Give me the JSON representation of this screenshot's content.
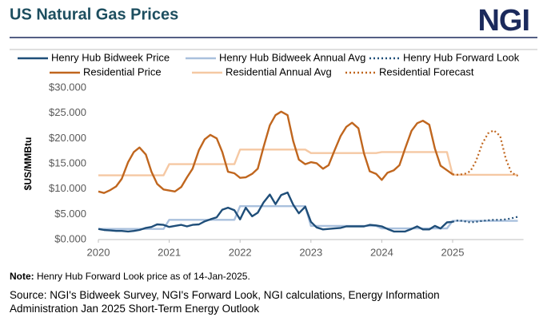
{
  "chart_data": {
    "type": "line",
    "title": "US Natural Gas Prices",
    "logo": "NGI",
    "y_label": "$US/MMBtu",
    "x": [
      2020,
      2020.08,
      2020.17,
      2020.25,
      2020.33,
      2020.42,
      2020.5,
      2020.58,
      2020.67,
      2020.75,
      2020.83,
      2020.92,
      2021,
      2021.08,
      2021.17,
      2021.25,
      2021.33,
      2021.42,
      2021.5,
      2021.58,
      2021.67,
      2021.75,
      2021.83,
      2021.92,
      2022,
      2022.08,
      2022.17,
      2022.25,
      2022.33,
      2022.42,
      2022.5,
      2022.58,
      2022.67,
      2022.75,
      2022.83,
      2022.92,
      2023,
      2023.08,
      2023.17,
      2023.25,
      2023.33,
      2023.42,
      2023.5,
      2023.58,
      2023.67,
      2023.75,
      2023.83,
      2023.92,
      2024,
      2024.08,
      2024.17,
      2024.25,
      2024.33,
      2024.42,
      2024.5,
      2024.58,
      2024.67,
      2024.75,
      2024.83,
      2024.92,
      2025,
      2025.08,
      2025.17,
      2025.25,
      2025.33,
      2025.42,
      2025.5,
      2025.58,
      2025.67,
      2025.75,
      2025.83,
      2025.92
    ],
    "series": [
      {
        "name": "Henry Hub Bidweek Price",
        "color": "#1f4e79",
        "dash": false,
        "values": [
          2.1,
          1.9,
          1.8,
          1.7,
          1.7,
          1.6,
          1.7,
          1.9,
          2.3,
          2.5,
          3.0,
          2.9,
          2.5,
          2.7,
          2.9,
          2.6,
          2.9,
          3.0,
          3.6,
          4.0,
          4.4,
          5.9,
          6.3,
          5.8,
          4.0,
          6.3,
          4.6,
          5.3,
          7.3,
          8.9,
          7.0,
          8.8,
          9.3,
          6.9,
          5.2,
          6.5,
          3.5,
          2.4,
          2.0,
          2.1,
          2.2,
          2.3,
          2.6,
          2.6,
          2.6,
          2.6,
          2.9,
          2.8,
          2.6,
          2.1,
          1.6,
          1.6,
          1.6,
          2.1,
          2.6,
          2.0,
          2.0,
          2.7,
          2.2,
          3.4,
          3.5,
          null,
          null,
          null,
          null,
          null,
          null,
          null,
          null,
          null,
          null,
          null
        ]
      },
      {
        "name": "Henry Hub Bidweek Annual Avg",
        "color": "#a9c0dd",
        "dash": false,
        "values": [
          2.1,
          2.1,
          2.1,
          2.1,
          2.1,
          2.1,
          2.1,
          2.1,
          2.1,
          2.1,
          2.1,
          2.1,
          3.9,
          3.9,
          3.9,
          3.9,
          3.9,
          3.9,
          3.9,
          3.9,
          3.9,
          3.9,
          3.9,
          3.9,
          6.6,
          6.6,
          6.6,
          6.6,
          6.6,
          6.6,
          6.6,
          6.6,
          6.6,
          6.6,
          6.6,
          6.6,
          2.7,
          2.7,
          2.7,
          2.7,
          2.7,
          2.7,
          2.7,
          2.7,
          2.7,
          2.7,
          2.7,
          2.7,
          2.2,
          2.2,
          2.2,
          2.2,
          2.2,
          2.2,
          2.2,
          2.2,
          2.2,
          2.2,
          2.2,
          2.2,
          3.7,
          3.7,
          3.7,
          3.7,
          3.7,
          3.7,
          3.7,
          3.7,
          3.7,
          3.7,
          3.7,
          3.7
        ]
      },
      {
        "name": "Henry Hub Forward Look",
        "color": "#1f4e79",
        "dash": true,
        "values": [
          null,
          null,
          null,
          null,
          null,
          null,
          null,
          null,
          null,
          null,
          null,
          null,
          null,
          null,
          null,
          null,
          null,
          null,
          null,
          null,
          null,
          null,
          null,
          null,
          null,
          null,
          null,
          null,
          null,
          null,
          null,
          null,
          null,
          null,
          null,
          null,
          null,
          null,
          null,
          null,
          null,
          null,
          null,
          null,
          null,
          null,
          null,
          null,
          null,
          null,
          null,
          null,
          null,
          null,
          null,
          null,
          null,
          null,
          null,
          null,
          3.5,
          3.8,
          3.6,
          3.4,
          3.5,
          3.7,
          3.8,
          3.9,
          3.9,
          4.0,
          4.2,
          4.5
        ]
      },
      {
        "name": "Residential Price",
        "color": "#c0661e",
        "dash": false,
        "values": [
          9.5,
          9.2,
          9.8,
          10.5,
          12.0,
          15.3,
          17.3,
          18.2,
          16.8,
          13.4,
          11.0,
          9.9,
          9.7,
          9.5,
          10.4,
          12.3,
          14.0,
          17.7,
          19.8,
          20.7,
          20.0,
          17.3,
          13.4,
          13.1,
          12.2,
          12.3,
          13.0,
          14.0,
          18.2,
          22.6,
          24.6,
          25.3,
          24.6,
          19.5,
          15.8,
          14.9,
          15.3,
          15.1,
          14.0,
          14.7,
          17.5,
          20.5,
          22.3,
          23.1,
          22.0,
          17.0,
          13.5,
          13.0,
          11.8,
          13.2,
          13.7,
          14.7,
          18.0,
          21.5,
          23.0,
          23.5,
          22.7,
          18.0,
          14.6,
          13.7,
          12.9,
          null,
          null,
          null,
          null,
          null,
          null,
          null,
          null,
          null,
          null,
          null
        ]
      },
      {
        "name": "Residential Annual Avg",
        "color": "#f5c8a3",
        "dash": false,
        "values": [
          12.7,
          12.7,
          12.7,
          12.7,
          12.7,
          12.7,
          12.7,
          12.7,
          12.7,
          12.7,
          12.7,
          12.7,
          14.9,
          14.9,
          14.9,
          14.9,
          14.9,
          14.9,
          14.9,
          14.9,
          14.9,
          14.9,
          14.9,
          14.9,
          17.8,
          17.8,
          17.8,
          17.8,
          17.8,
          17.8,
          17.8,
          17.8,
          17.8,
          17.8,
          17.8,
          17.8,
          17.1,
          17.1,
          17.1,
          17.1,
          17.1,
          17.1,
          17.1,
          17.1,
          17.1,
          17.1,
          17.1,
          17.1,
          17.3,
          17.3,
          17.3,
          17.3,
          17.3,
          17.3,
          17.3,
          17.3,
          17.3,
          17.3,
          17.3,
          17.3,
          12.8,
          12.8,
          12.8,
          12.8,
          12.8,
          12.8,
          12.8,
          12.8,
          12.8,
          12.8,
          12.8,
          12.8
        ]
      },
      {
        "name": "Residential Forecast",
        "color": "#c0661e",
        "dash": true,
        "values": [
          null,
          null,
          null,
          null,
          null,
          null,
          null,
          null,
          null,
          null,
          null,
          null,
          null,
          null,
          null,
          null,
          null,
          null,
          null,
          null,
          null,
          null,
          null,
          null,
          null,
          null,
          null,
          null,
          null,
          null,
          null,
          null,
          null,
          null,
          null,
          null,
          null,
          null,
          null,
          null,
          null,
          null,
          null,
          null,
          null,
          null,
          null,
          null,
          null,
          null,
          null,
          null,
          null,
          null,
          null,
          null,
          null,
          null,
          null,
          null,
          12.9,
          12.8,
          13.0,
          13.5,
          15.5,
          19.0,
          21.0,
          21.6,
          20.5,
          16.0,
          13.2,
          12.6
        ]
      }
    ],
    "xlim": [
      2020,
      2026
    ],
    "xticks": [
      2020,
      2021,
      2022,
      2023,
      2024,
      2025
    ],
    "ylim": [
      0,
      30
    ],
    "yticks": [
      {
        "value": 0,
        "label": "$0.000"
      },
      {
        "value": 5,
        "label": "$5.000"
      },
      {
        "value": 10,
        "label": "$10.000"
      },
      {
        "value": 15,
        "label": "$15.000"
      },
      {
        "value": 20,
        "label": "$20.000"
      },
      {
        "value": 25,
        "label": "$25.000"
      },
      {
        "value": 30,
        "label": "$30.000"
      }
    ],
    "grid": false
  },
  "footer": {
    "note_label": "Note:",
    "note": "Henry Hub Forward Look price as of 14-Jan-2025.",
    "source": "Source: NGI's Bidweek Survey, NGI's Forward Look, NGI calculations, Energy Information Administration Jan 2025 Short-Term Energy Outlook"
  }
}
